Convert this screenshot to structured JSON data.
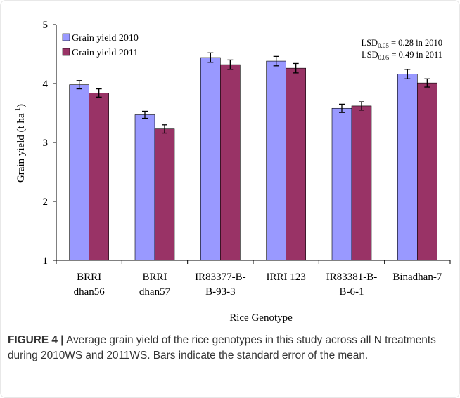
{
  "chart_data": {
    "type": "bar",
    "categories": [
      [
        "BRRI",
        "dhan56"
      ],
      [
        "BRRI",
        "dhan57"
      ],
      [
        "IR83377-B-",
        "B-93-3"
      ],
      [
        "IRRI 123"
      ],
      [
        "IR83381-B-",
        "B-6-1"
      ],
      [
        "Binadhan-7"
      ]
    ],
    "series": [
      {
        "name": "Grain yield 2010",
        "color": "#9999ff",
        "values": [
          3.98,
          3.47,
          4.44,
          4.38,
          3.58,
          4.16
        ],
        "errors": [
          0.07,
          0.06,
          0.08,
          0.08,
          0.07,
          0.08
        ]
      },
      {
        "name": "Grain yield 2011",
        "color": "#993366",
        "values": [
          3.84,
          3.23,
          4.32,
          4.26,
          3.62,
          4.01
        ],
        "errors": [
          0.07,
          0.07,
          0.08,
          0.08,
          0.07,
          0.07
        ]
      }
    ],
    "xlabel": "Rice Genotype",
    "ylabel": "Grain yield (t ha-1)",
    "ylabel_main": "Grain yield (t ha",
    "ylabel_sup": "-1",
    "ylabel_close": ")",
    "ylim": [
      1,
      5
    ],
    "yticks": [
      "1",
      "2",
      "3",
      "4",
      "5"
    ],
    "annotations": [
      {
        "prefix": "LSD",
        "sub": "0.05",
        "text": " = 0.28 in 2010"
      },
      {
        "prefix": "LSD",
        "sub": "0.05",
        "text": " = 0.49 in 2011"
      }
    ],
    "legend_position": "top-left",
    "grid": false
  },
  "caption": {
    "label": "FIGURE 4 |",
    "text": " Average grain yield of the rice genotypes in this study across all N treatments during 2010WS and 2011WS. Bars indicate the standard error of the mean."
  }
}
